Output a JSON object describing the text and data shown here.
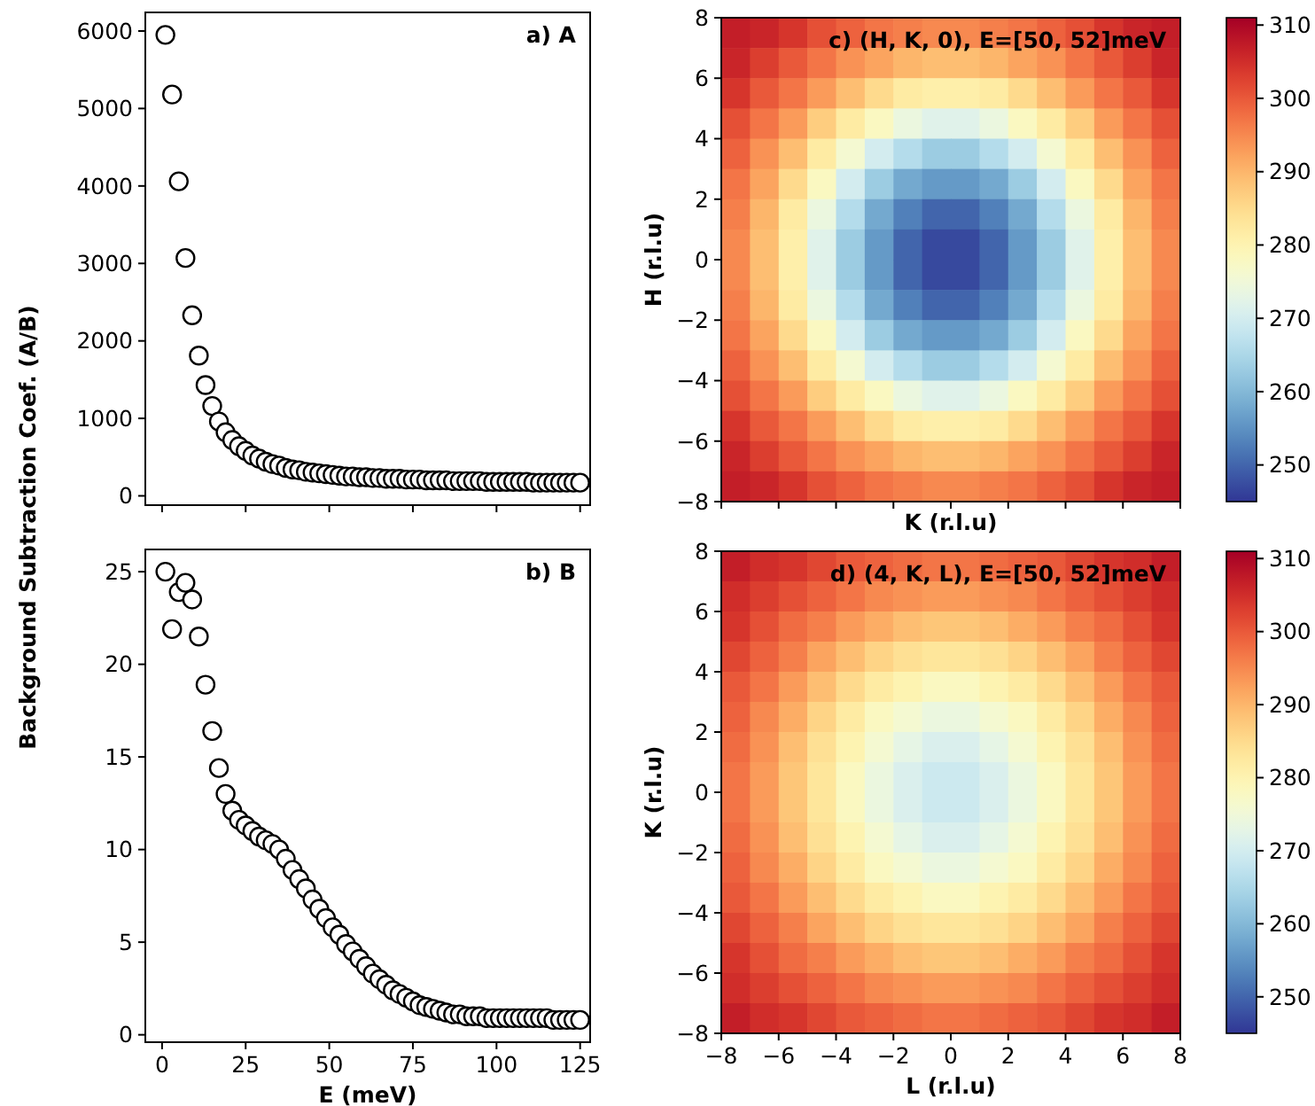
{
  "chart_data": [
    {
      "type": "scatter",
      "title": "a) A",
      "ylabel": "Background Subtraction Coef. (A/B)",
      "marker": "circle",
      "tick_labels": "y",
      "xlim": [
        -5,
        128
      ],
      "ylim": [
        -120,
        6240
      ],
      "xticks": [
        0,
        25,
        50,
        75,
        100,
        125
      ],
      "yticks": [
        0,
        1000,
        2000,
        3000,
        4000,
        5000,
        6000
      ],
      "x": [
        1,
        3,
        5,
        7,
        9,
        11,
        13,
        15,
        17,
        19,
        21,
        23,
        25,
        27,
        29,
        31,
        33,
        35,
        37,
        39,
        41,
        43,
        45,
        47,
        49,
        51,
        53,
        55,
        57,
        59,
        61,
        63,
        65,
        67,
        69,
        71,
        73,
        75,
        77,
        79,
        81,
        83,
        85,
        87,
        89,
        91,
        93,
        95,
        97,
        99,
        101,
        103,
        105,
        107,
        109,
        111,
        113,
        115,
        117,
        119,
        121,
        123,
        125
      ],
      "series": [
        {
          "color": "#000000",
          "values": [
            5950,
            5180,
            4060,
            3070,
            2330,
            1810,
            1430,
            1160,
            960,
            820,
            720,
            640,
            580,
            520,
            480,
            440,
            410,
            390,
            360,
            340,
            330,
            310,
            300,
            290,
            280,
            270,
            260,
            250,
            250,
            240,
            240,
            230,
            230,
            220,
            220,
            220,
            210,
            210,
            210,
            200,
            200,
            200,
            200,
            190,
            190,
            190,
            190,
            190,
            180,
            180,
            180,
            180,
            180,
            180,
            180,
            170,
            170,
            170,
            170,
            170,
            170,
            170,
            170
          ]
        }
      ]
    },
    {
      "type": "scatter",
      "title": "b) B",
      "xlabel": "E (meV)",
      "marker": "circle",
      "xlim": [
        -5,
        128
      ],
      "ylim": [
        -0.4,
        26.2
      ],
      "xticks": [
        0,
        25,
        50,
        75,
        100,
        125
      ],
      "yticks": [
        0,
        5,
        10,
        15,
        20,
        25
      ],
      "x": [
        1,
        3,
        5,
        7,
        9,
        11,
        13,
        15,
        17,
        19,
        21,
        23,
        25,
        27,
        29,
        31,
        33,
        35,
        37,
        39,
        41,
        43,
        45,
        47,
        49,
        51,
        53,
        55,
        57,
        59,
        61,
        63,
        65,
        67,
        69,
        71,
        73,
        75,
        77,
        79,
        81,
        83,
        85,
        87,
        89,
        91,
        93,
        95,
        97,
        99,
        101,
        103,
        105,
        107,
        109,
        111,
        113,
        115,
        117,
        119,
        121,
        123,
        125
      ],
      "series": [
        {
          "color": "#000000",
          "values": [
            25.0,
            21.9,
            23.9,
            24.4,
            23.5,
            21.5,
            18.9,
            16.4,
            14.4,
            13.0,
            12.1,
            11.6,
            11.3,
            11.0,
            10.7,
            10.5,
            10.3,
            10.0,
            9.5,
            8.9,
            8.4,
            7.9,
            7.3,
            6.8,
            6.3,
            5.8,
            5.4,
            4.9,
            4.5,
            4.1,
            3.7,
            3.3,
            3.0,
            2.7,
            2.4,
            2.2,
            2.0,
            1.8,
            1.6,
            1.5,
            1.4,
            1.3,
            1.2,
            1.1,
            1.1,
            1.0,
            1.0,
            1.0,
            0.9,
            0.9,
            0.9,
            0.9,
            0.9,
            0.9,
            0.9,
            0.9,
            0.9,
            0.9,
            0.8,
            0.8,
            0.8,
            0.8,
            0.8
          ]
        }
      ]
    },
    {
      "type": "heatmap",
      "title": "c) (H, K, 0), E=[50, 52]meV",
      "xlabel": "K (r.l.u)",
      "ylabel": "H (r.l.u)",
      "tick_labels": "y",
      "xlim": [
        -8,
        8
      ],
      "ylim": [
        -8,
        8
      ],
      "xticks": [
        {
          "value": -8,
          "label": null
        },
        {
          "value": -6,
          "label": null
        },
        {
          "value": -4,
          "label": null
        },
        {
          "value": -2,
          "label": null
        },
        {
          "value": 0,
          "label": null
        },
        {
          "value": 2,
          "label": null
        },
        {
          "value": 4,
          "label": null
        },
        {
          "value": 6,
          "label": null
        },
        {
          "value": 8,
          "label": null
        }
      ],
      "yticks": [
        {
          "value": -8,
          "label": "−8"
        },
        {
          "value": -6,
          "label": "−6"
        },
        {
          "value": -4,
          "label": "−4"
        },
        {
          "value": -2,
          "label": "−2"
        },
        0,
        2,
        4,
        6,
        8
      ],
      "clim": [
        245,
        311
      ],
      "cticks": [
        250,
        260,
        270,
        280,
        290,
        300,
        310
      ],
      "cells": [
        [
          307,
          306,
          304,
          301,
          299,
          297,
          296,
          295,
          295,
          296,
          297,
          299,
          301,
          304,
          306,
          307
        ],
        [
          306,
          303,
          300,
          297,
          294,
          292,
          290,
          289,
          289,
          290,
          292,
          294,
          297,
          300,
          303,
          306
        ],
        [
          304,
          300,
          297,
          293,
          289,
          285,
          282,
          281,
          281,
          282,
          285,
          289,
          293,
          297,
          300,
          304
        ],
        [
          301,
          297,
          293,
          287,
          282,
          278,
          274,
          272,
          272,
          274,
          278,
          282,
          287,
          293,
          297,
          301
        ],
        [
          299,
          294,
          289,
          282,
          276,
          270,
          266,
          263,
          263,
          266,
          270,
          276,
          282,
          289,
          294,
          299
        ],
        [
          297,
          292,
          285,
          278,
          270,
          263,
          258,
          256,
          256,
          258,
          263,
          270,
          278,
          285,
          292,
          297
        ],
        [
          296,
          290,
          282,
          274,
          266,
          258,
          253,
          250,
          250,
          253,
          258,
          266,
          274,
          282,
          290,
          296
        ],
        [
          295,
          289,
          281,
          272,
          263,
          256,
          250,
          247,
          247,
          250,
          256,
          263,
          272,
          281,
          289,
          295
        ],
        [
          295,
          289,
          281,
          272,
          263,
          256,
          250,
          247,
          247,
          250,
          256,
          263,
          272,
          281,
          289,
          295
        ],
        [
          296,
          290,
          282,
          274,
          266,
          258,
          253,
          250,
          250,
          253,
          258,
          266,
          274,
          282,
          290,
          296
        ],
        [
          297,
          292,
          285,
          278,
          270,
          263,
          258,
          256,
          256,
          258,
          263,
          270,
          278,
          285,
          292,
          297
        ],
        [
          299,
          294,
          289,
          282,
          276,
          270,
          266,
          263,
          263,
          266,
          270,
          276,
          282,
          289,
          294,
          299
        ],
        [
          301,
          297,
          293,
          287,
          282,
          278,
          274,
          272,
          272,
          274,
          278,
          282,
          287,
          293,
          297,
          301
        ],
        [
          304,
          300,
          297,
          293,
          289,
          285,
          282,
          281,
          281,
          282,
          285,
          289,
          293,
          297,
          300,
          304
        ],
        [
          306,
          303,
          300,
          297,
          294,
          292,
          290,
          289,
          289,
          290,
          292,
          294,
          297,
          300,
          303,
          306
        ],
        [
          307,
          306,
          304,
          301,
          299,
          297,
          296,
          295,
          295,
          296,
          297,
          299,
          301,
          304,
          306,
          307
        ]
      ]
    },
    {
      "type": "heatmap",
      "title": "d) (4, K, L), E=[50, 52]meV",
      "xlabel": "L (r.l.u)",
      "ylabel": "K (r.l.u)",
      "xlim": [
        -8,
        8
      ],
      "ylim": [
        -8,
        8
      ],
      "xticks": [
        {
          "value": -8,
          "label": "−8"
        },
        {
          "value": -6,
          "label": "−6"
        },
        {
          "value": -4,
          "label": "−4"
        },
        {
          "value": -2,
          "label": "−2"
        },
        0,
        2,
        4,
        6,
        8
      ],
      "yticks": [
        {
          "value": -8,
          "label": "−8"
        },
        {
          "value": -6,
          "label": "−6"
        },
        {
          "value": -4,
          "label": "−4"
        },
        {
          "value": -2,
          "label": "−2"
        },
        0,
        2,
        4,
        6,
        8
      ],
      "clim": [
        245,
        311
      ],
      "cticks": [
        250,
        260,
        270,
        280,
        290,
        300,
        310
      ],
      "cells": [
        [
          307,
          305,
          304,
          302,
          300,
          299,
          298,
          297,
          297,
          298,
          299,
          300,
          302,
          304,
          305,
          307
        ],
        [
          305,
          303,
          301,
          299,
          297,
          295,
          294,
          293,
          293,
          294,
          295,
          297,
          299,
          301,
          303,
          305
        ],
        [
          304,
          301,
          298,
          296,
          293,
          291,
          289,
          288,
          288,
          289,
          291,
          293,
          296,
          298,
          301,
          304
        ],
        [
          302,
          299,
          296,
          292,
          289,
          286,
          284,
          283,
          283,
          284,
          286,
          289,
          292,
          296,
          299,
          302
        ],
        [
          300,
          297,
          293,
          289,
          285,
          282,
          280,
          278,
          278,
          280,
          282,
          285,
          289,
          293,
          297,
          300
        ],
        [
          299,
          295,
          291,
          286,
          282,
          278,
          276,
          274,
          274,
          276,
          278,
          282,
          286,
          291,
          295,
          299
        ],
        [
          298,
          294,
          289,
          284,
          280,
          276,
          273,
          271,
          271,
          273,
          276,
          280,
          284,
          289,
          294,
          298
        ],
        [
          297,
          293,
          288,
          283,
          278,
          274,
          271,
          269,
          269,
          271,
          274,
          278,
          283,
          288,
          293,
          297
        ],
        [
          297,
          293,
          288,
          283,
          278,
          274,
          271,
          269,
          269,
          271,
          274,
          278,
          283,
          288,
          293,
          297
        ],
        [
          298,
          294,
          289,
          284,
          280,
          276,
          273,
          271,
          271,
          273,
          276,
          280,
          284,
          289,
          294,
          298
        ],
        [
          299,
          295,
          291,
          286,
          282,
          278,
          276,
          274,
          274,
          276,
          278,
          282,
          286,
          291,
          295,
          299
        ],
        [
          300,
          297,
          293,
          289,
          285,
          282,
          280,
          278,
          278,
          280,
          282,
          285,
          289,
          293,
          297,
          300
        ],
        [
          302,
          299,
          296,
          292,
          289,
          286,
          284,
          283,
          283,
          284,
          286,
          289,
          292,
          296,
          299,
          302
        ],
        [
          304,
          301,
          298,
          296,
          293,
          291,
          289,
          288,
          288,
          289,
          291,
          293,
          296,
          298,
          301,
          304
        ],
        [
          305,
          303,
          301,
          299,
          297,
          295,
          294,
          293,
          293,
          294,
          295,
          297,
          299,
          301,
          303,
          305
        ],
        [
          307,
          305,
          304,
          302,
          300,
          299,
          298,
          297,
          297,
          298,
          299,
          300,
          302,
          304,
          305,
          307
        ]
      ]
    }
  ]
}
